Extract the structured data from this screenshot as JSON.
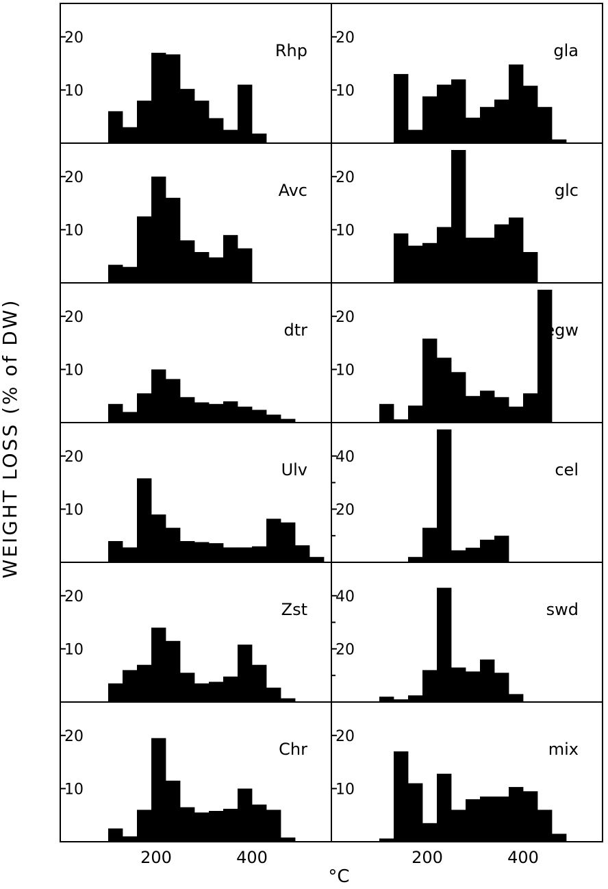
{
  "figure": {
    "ylabel": "WEIGHT LOSS (% of DW)",
    "xlabel": "°C",
    "x_ticks": [
      200,
      400
    ]
  },
  "chart_data": [
    {
      "type": "bar",
      "label": "Rhp",
      "bin_start": 100,
      "bin_width": 30,
      "ylim": [
        0,
        25
      ],
      "yticks": [
        10,
        20
      ],
      "values": [
        6,
        3,
        8,
        17,
        16.7,
        10.2,
        8,
        4.7,
        2.5,
        11,
        1.8
      ]
    },
    {
      "type": "bar",
      "label": "gla",
      "bin_start": 130,
      "bin_width": 30,
      "ylim": [
        0,
        25
      ],
      "yticks": [
        10,
        20
      ],
      "values": [
        13,
        2.5,
        8.8,
        11,
        12,
        4.8,
        6.8,
        8.2,
        14.8,
        10.8,
        6.8,
        0.7
      ]
    },
    {
      "type": "bar",
      "label": "Avc",
      "bin_start": 100,
      "bin_width": 30,
      "ylim": [
        0,
        25
      ],
      "yticks": [
        10,
        20
      ],
      "values": [
        3.4,
        3,
        12.5,
        20,
        16,
        8,
        5.8,
        4.8,
        9,
        6.5
      ]
    },
    {
      "type": "bar",
      "label": "glc",
      "bin_start": 130,
      "bin_width": 30,
      "ylim": [
        0,
        25
      ],
      "yticks": [
        10,
        20
      ],
      "values": [
        9.3,
        7,
        7.5,
        10.5,
        25,
        8.5,
        8.5,
        11,
        12.3,
        5.8
      ]
    },
    {
      "type": "bar",
      "label": "dtr",
      "bin_start": 100,
      "bin_width": 30,
      "ylim": [
        0,
        25
      ],
      "yticks": [
        10,
        20
      ],
      "values": [
        3.5,
        2,
        5.5,
        10,
        8.2,
        4.8,
        3.8,
        3.5,
        4,
        3,
        2.4,
        1.5,
        0.7
      ]
    },
    {
      "type": "bar",
      "label": "egw",
      "bin_start": 100,
      "bin_width": 30,
      "ylim": [
        0,
        25
      ],
      "yticks": [
        10,
        20
      ],
      "values": [
        3.5,
        0.6,
        3.2,
        15.8,
        12.2,
        9.5,
        5,
        6,
        4.8,
        3,
        5.5,
        25
      ]
    },
    {
      "type": "bar",
      "label": "Ulv",
      "bin_start": 100,
      "bin_width": 30,
      "ylim": [
        0,
        25
      ],
      "yticks": [
        10,
        20
      ],
      "values": [
        4,
        2.8,
        15.8,
        9,
        6.5,
        4,
        3.8,
        3.6,
        2.8,
        2.8,
        3,
        8.2,
        7.5,
        3.2,
        1
      ]
    },
    {
      "type": "bar",
      "label": "cel",
      "bin_start": 160,
      "bin_width": 30,
      "ylim": [
        0,
        50
      ],
      "yticks": [
        20,
        40
      ],
      "values": [
        2,
        13,
        50,
        4.5,
        5.5,
        8.5,
        10
      ]
    },
    {
      "type": "bar",
      "label": "Zst",
      "bin_start": 100,
      "bin_width": 30,
      "ylim": [
        0,
        25
      ],
      "yticks": [
        10,
        20
      ],
      "values": [
        3.5,
        6,
        7,
        14,
        11.5,
        5.5,
        3.5,
        3.8,
        4.8,
        10.8,
        7,
        2.7,
        0.7
      ]
    },
    {
      "type": "bar",
      "label": "swd",
      "bin_start": 100,
      "bin_width": 30,
      "ylim": [
        0,
        50
      ],
      "yticks": [
        20,
        40
      ],
      "values": [
        2,
        1,
        2.5,
        12,
        43,
        13,
        11.5,
        16,
        11,
        3
      ]
    },
    {
      "type": "bar",
      "label": "Chr",
      "bin_start": 100,
      "bin_width": 30,
      "ylim": [
        0,
        25
      ],
      "yticks": [
        10,
        20
      ],
      "values": [
        2.5,
        1,
        6,
        19.5,
        11.5,
        6.5,
        5.5,
        5.8,
        6.2,
        10,
        7,
        6,
        0.8
      ]
    },
    {
      "type": "bar",
      "label": "mix",
      "bin_start": 100,
      "bin_width": 30,
      "ylim": [
        0,
        25
      ],
      "yticks": [
        10,
        20
      ],
      "values": [
        0.6,
        17,
        11,
        3.5,
        12.8,
        6,
        8,
        8.5,
        8.5,
        10.3,
        9.5,
        6,
        1.5
      ]
    }
  ]
}
